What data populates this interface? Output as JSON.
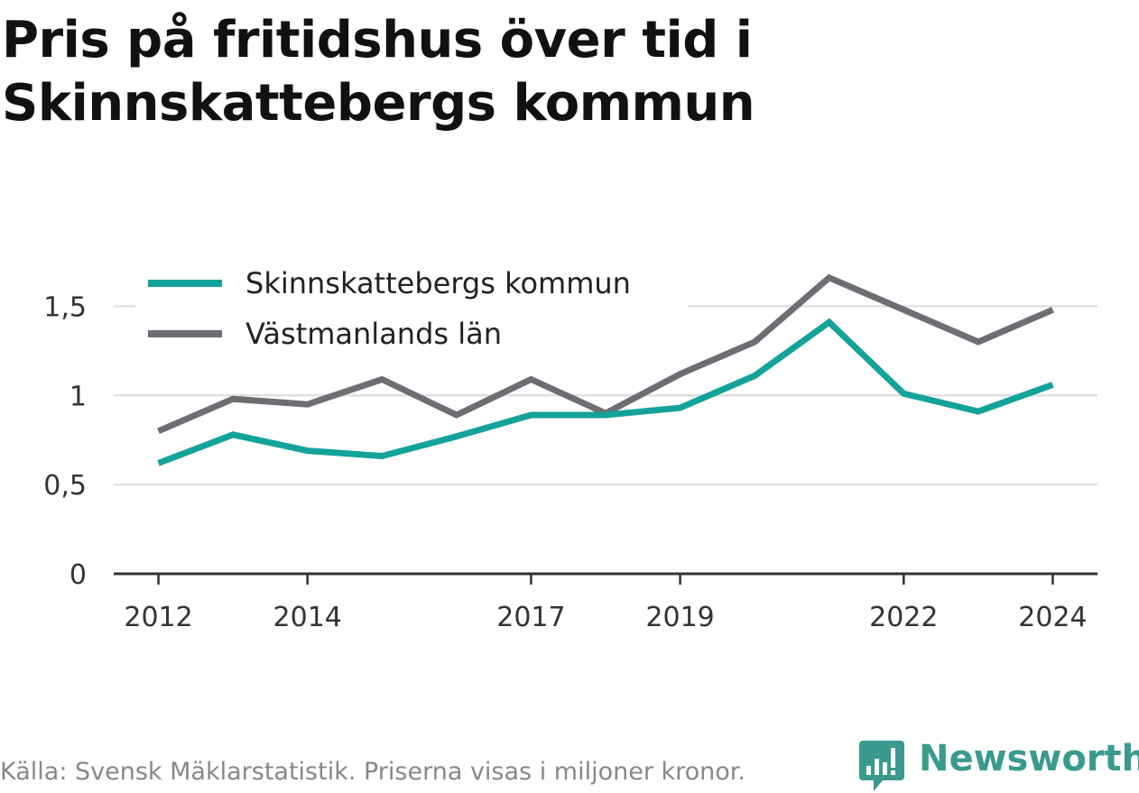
{
  "title_lines": [
    "Pris på fritidshus över tid i",
    "Skinnskattebergs kommun"
  ],
  "footer": "Källa: Svensk Mäklarstatistik. Priserna visas i miljoner kronor.",
  "brand": {
    "name": "Newsworthy",
    "icon": "bar-chart-speech-bubble-icon",
    "color": "#3a9a8e"
  },
  "chart_data": {
    "type": "line",
    "x": [
      2012,
      2013,
      2014,
      2015,
      2016,
      2017,
      2018,
      2019,
      2020,
      2021,
      2022,
      2023,
      2024
    ],
    "x_tick_labels": [
      "2012",
      "2014",
      "2017",
      "2019",
      "2022",
      "2024"
    ],
    "x_ticks": [
      2012,
      2014,
      2017,
      2019,
      2022,
      2024
    ],
    "y_tick_labels": [
      "0",
      "0,5",
      "1",
      "1,5"
    ],
    "y_ticks": [
      0,
      0.5,
      1,
      1.5
    ],
    "ylim": [
      0,
      1.75
    ],
    "xlim": [
      2011.4,
      2024.6
    ],
    "grid": true,
    "legend_position": "top-left",
    "series": [
      {
        "name": "Skinnskattebergs kommun",
        "color": "#14a39a",
        "values": [
          0.62,
          0.78,
          0.69,
          0.66,
          0.77,
          0.89,
          0.89,
          0.93,
          1.11,
          1.41,
          1.01,
          0.91,
          1.06
        ]
      },
      {
        "name": "Västmanlands län",
        "color": "#6e6d73",
        "values": [
          0.8,
          0.98,
          0.95,
          1.09,
          0.89,
          1.09,
          0.9,
          1.12,
          1.3,
          1.66,
          1.48,
          1.3,
          1.48
        ]
      }
    ]
  }
}
